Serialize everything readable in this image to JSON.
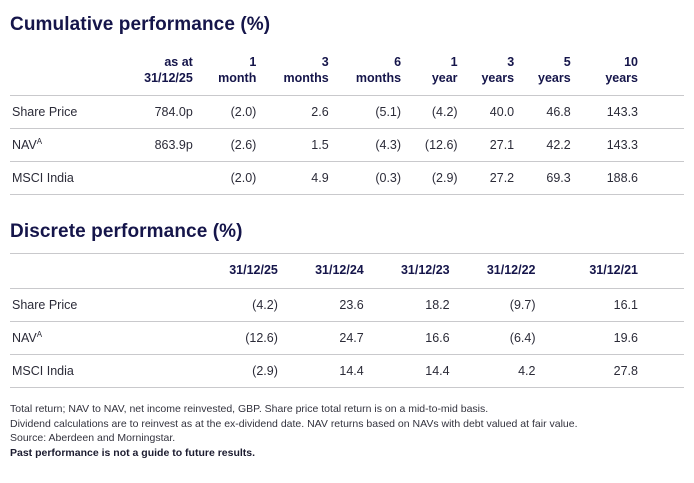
{
  "cumulative": {
    "title": "Cumulative performance (%)",
    "columns": [
      {
        "l1": "as at",
        "l2": "31/12/25"
      },
      {
        "l1": "1",
        "l2": "month"
      },
      {
        "l1": "3",
        "l2": "months"
      },
      {
        "l1": "6",
        "l2": "months"
      },
      {
        "l1": "1",
        "l2": "year"
      },
      {
        "l1": "3",
        "l2": "years"
      },
      {
        "l1": "5",
        "l2": "years"
      },
      {
        "l1": "10",
        "l2": "years"
      }
    ],
    "rows": [
      {
        "label": "Share Price",
        "sup": "",
        "values": [
          "784.0p",
          "(2.0)",
          "2.6",
          "(5.1)",
          "(4.2)",
          "40.0",
          "46.8",
          "143.3"
        ]
      },
      {
        "label": "NAV",
        "sup": "A",
        "values": [
          "863.9p",
          "(2.6)",
          "1.5",
          "(4.3)",
          "(12.6)",
          "27.1",
          "42.2",
          "143.3"
        ]
      },
      {
        "label": "MSCI India",
        "sup": "",
        "values": [
          "",
          "(2.0)",
          "4.9",
          "(0.3)",
          "(2.9)",
          "27.2",
          "69.3",
          "188.6"
        ]
      }
    ]
  },
  "discrete": {
    "title": "Discrete performance (%)",
    "columns": [
      "31/12/25",
      "31/12/24",
      "31/12/23",
      "31/12/22",
      "31/12/21"
    ],
    "rows": [
      {
        "label": "Share Price",
        "sup": "",
        "values": [
          "(4.2)",
          "23.6",
          "18.2",
          "(9.7)",
          "16.1"
        ]
      },
      {
        "label": "NAV",
        "sup": "A",
        "values": [
          "(12.6)",
          "24.7",
          "16.6",
          "(6.4)",
          "19.6"
        ]
      },
      {
        "label": "MSCI India",
        "sup": "",
        "values": [
          "(2.9)",
          "14.4",
          "14.4",
          "4.2",
          "27.8"
        ]
      }
    ]
  },
  "footnotes": {
    "line1": "Total return; NAV to NAV, net income reinvested, GBP. Share price total return is on a mid-to-mid basis.",
    "line2": "Dividend calculations are to reinvest as at the ex-dividend date. NAV returns based on NAVs with debt valued at fair value.",
    "line3": "Source: Aberdeen and Morningstar.",
    "line4": "Past performance is not a guide to future results."
  },
  "colors": {
    "heading": "#15154a",
    "body_text": "#2b2b38",
    "rule": "#c9c9cc"
  }
}
